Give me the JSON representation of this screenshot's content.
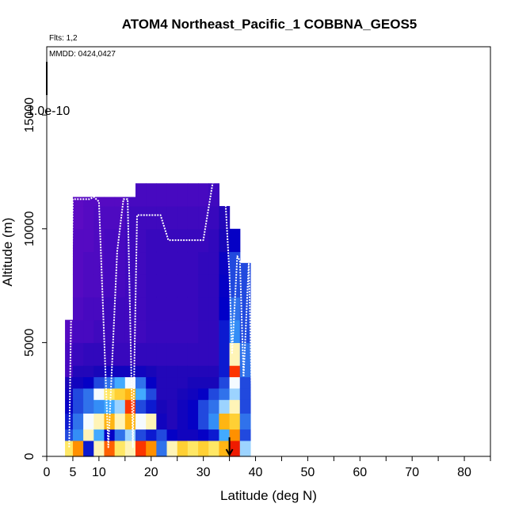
{
  "chart_data": {
    "type": "heatmap",
    "title": "ATOM4 Northeast_Pacific_1 COBBNA_GEOS5",
    "flights_note": "Flts: 1,2",
    "date_note": "MMDD: 0424,0427",
    "colorbar_label": "1.0e-10",
    "xlabel": "Latitude (deg N)",
    "ylabel": "Altitude (m)",
    "xlim": [
      0,
      85
    ],
    "ylim": [
      0,
      18000
    ],
    "x_ticks": [
      0,
      5,
      10,
      20,
      30,
      40,
      50,
      60,
      70,
      80
    ],
    "x_minor_ticks": [
      15,
      25,
      35,
      45,
      55,
      65,
      75,
      85
    ],
    "y_ticks": [
      0,
      5000,
      10000,
      15000
    ],
    "curtain": {
      "x_edges": [
        3.5,
        5,
        7,
        9,
        11,
        13,
        15,
        17,
        19,
        21,
        23,
        25,
        27,
        29,
        31,
        33,
        35,
        37,
        39
      ],
      "y_edges": [
        0,
        700,
        1200,
        1900,
        2500,
        3000,
        3500,
        4000,
        5000,
        6000,
        7000,
        8000,
        9000,
        10000,
        11000,
        12000
      ],
      "top": [
        6000,
        11400,
        11400,
        11400,
        11400,
        11400,
        11400,
        12000,
        12000,
        12000,
        12000,
        12000,
        12500,
        12500,
        12500,
        11000,
        10000,
        8500
      ],
      "values": [
        [
          0.65,
          0.8,
          0.25,
          0.6,
          0.85,
          0.65,
          0.6,
          0.9,
          0.8,
          0.35,
          0.6,
          0.7,
          0.65,
          0.7,
          0.65,
          0.75,
          0.95,
          0.5
        ],
        [
          0.3,
          0.4,
          0.6,
          0.45,
          0.2,
          0.35,
          0.5,
          0.3,
          0.25,
          0.3,
          0.2,
          0.15,
          0.15,
          0.2,
          0.25,
          0.45,
          0.8,
          0.3
        ],
        [
          0.25,
          0.35,
          0.55,
          0.6,
          0.75,
          0.6,
          0.75,
          0.55,
          0.6,
          0.15,
          0.1,
          0.15,
          0.2,
          0.3,
          0.4,
          0.75,
          0.7,
          0.35
        ],
        [
          0.2,
          0.3,
          0.35,
          0.4,
          0.45,
          0.5,
          0.9,
          0.3,
          0.25,
          0.12,
          0.1,
          0.15,
          0.2,
          0.3,
          0.35,
          0.5,
          0.6,
          0.3
        ],
        [
          0.15,
          0.3,
          0.35,
          0.55,
          0.65,
          0.7,
          0.75,
          0.45,
          0.3,
          0.1,
          0.1,
          0.12,
          0.15,
          0.2,
          0.3,
          0.35,
          0.5,
          0.3
        ],
        [
          0.12,
          0.15,
          0.2,
          0.3,
          0.35,
          0.45,
          0.55,
          0.35,
          0.2,
          0.1,
          0.1,
          0.1,
          0.12,
          0.12,
          0.12,
          0.3,
          0.55,
          0.3
        ],
        [
          0.05,
          0.1,
          0.1,
          0.12,
          0.15,
          0.15,
          0.15,
          0.15,
          0.12,
          0.1,
          0.1,
          0.1,
          0.1,
          0.1,
          0.1,
          0.25,
          0.9,
          0.35
        ],
        [
          0.05,
          0.07,
          0.08,
          0.08,
          0.07,
          0.07,
          0.07,
          0.08,
          0.08,
          0.08,
          0.08,
          0.08,
          0.08,
          0.08,
          0.08,
          0.25,
          0.6,
          0.35
        ],
        [
          0.03,
          0.05,
          0.05,
          0.06,
          0.06,
          0.06,
          0.06,
          0.06,
          0.07,
          0.07,
          0.07,
          0.07,
          0.07,
          0.08,
          0.08,
          0.25,
          0.4,
          0.3
        ],
        [
          0.03,
          0.04,
          0.05,
          0.05,
          0.06,
          0.06,
          0.06,
          0.06,
          0.07,
          0.07,
          0.07,
          0.07,
          0.07,
          0.08,
          0.08,
          0.22,
          0.35,
          0.3
        ],
        [
          0.02,
          0.03,
          0.04,
          0.04,
          0.05,
          0.05,
          0.06,
          0.06,
          0.07,
          0.07,
          0.07,
          0.07,
          0.07,
          0.08,
          0.08,
          0.2,
          0.3,
          0.3
        ],
        [
          0.02,
          0.03,
          0.04,
          0.04,
          0.05,
          0.05,
          0.06,
          0.06,
          0.07,
          0.07,
          0.07,
          0.07,
          0.07,
          0.08,
          0.08,
          0.18,
          0.3,
          0.3
        ],
        [
          0.02,
          0.03,
          0.03,
          0.04,
          0.05,
          0.05,
          0.06,
          0.06,
          0.07,
          0.07,
          0.07,
          0.07,
          0.07,
          0.07,
          0.08,
          0.12,
          0.2,
          0.2
        ],
        [
          0.02,
          0.02,
          0.03,
          0.04,
          0.04,
          0.04,
          0.06,
          0.06,
          0.06,
          0.06,
          0.06,
          0.06,
          0.06,
          0.06,
          0.07,
          0.1,
          0.15,
          0.15
        ],
        [
          0.02,
          0.02,
          0.03,
          0.03,
          0.03,
          0.03,
          0.05,
          0.05,
          0.05,
          0.05,
          0.05,
          0.05,
          0.05,
          0.05,
          0.06,
          0.08,
          0.1,
          0.1
        ]
      ]
    },
    "flight_track": {
      "lat": [
        4.3,
        5.0,
        7.0,
        8.2,
        9.0,
        10.0,
        11.8,
        13.5,
        14.7,
        15.5,
        16.5,
        17.3,
        18.0,
        21.8,
        23.3,
        25.8,
        27.5,
        28.3,
        30.0,
        32.0,
        34.0,
        35.0,
        35.5,
        36.5,
        37.0,
        37.7,
        38.7,
        39.3
      ],
      "alt": [
        400,
        11300,
        11300,
        11300,
        11400,
        11200,
        400,
        9000,
        11300,
        11300,
        400,
        10600,
        10600,
        10600,
        9500,
        9500,
        9500,
        9500,
        9500,
        12300,
        12200,
        8000,
        4500,
        8800,
        8600,
        3500,
        8500,
        2500
      ]
    },
    "arrow_marker": {
      "lat": 35,
      "alt_top": 700,
      "alt_bottom": 0
    },
    "colors": {
      "scale": [
        "#6b0cc6",
        "#1a06b8",
        "#0000c8",
        "#2f69e8",
        "#38a6ff",
        "#ffffff",
        "#ffe34a",
        "#ffa500",
        "#ff3b00",
        "#e10000"
      ],
      "flight_track": "#ffffff"
    }
  }
}
